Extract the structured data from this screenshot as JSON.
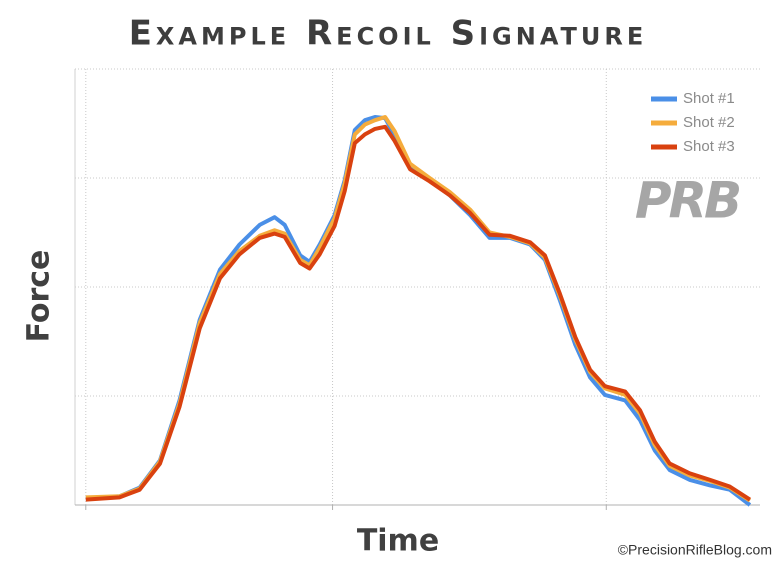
{
  "chart_data": {
    "type": "line",
    "title": "Example Recoil Signature",
    "x_label": "Time",
    "y_label": "Force",
    "logo": "PRB",
    "credit": "©PrecisionRifleBlog.com",
    "x": [
      0,
      5.0,
      8.0,
      11.0,
      13.9,
      16.9,
      19.9,
      22.8,
      25.8,
      28.0,
      29.5,
      31.8,
      33.2,
      34.7,
      36.9,
      38.4,
      39.9,
      41.4,
      42.9,
      44.4,
      45.8,
      48.1,
      51.0,
      54.0,
      57.0,
      59.9,
      62.9,
      65.9,
      68.1,
      70.3,
      72.6,
      74.8,
      77.0,
      80.0,
      82.2,
      84.4,
      86.6,
      89.6,
      92.6,
      95.5,
      98.5
    ],
    "series": [
      {
        "name": "Shot #1",
        "color": "#4a8fe7",
        "values": [
          0.06,
          0.08,
          0.16,
          0.41,
          0.96,
          1.7,
          2.16,
          2.39,
          2.57,
          2.64,
          2.57,
          2.29,
          2.23,
          2.39,
          2.66,
          2.98,
          3.44,
          3.53,
          3.56,
          3.55,
          3.39,
          3.09,
          2.98,
          2.84,
          2.66,
          2.45,
          2.45,
          2.39,
          2.25,
          1.88,
          1.47,
          1.17,
          1.01,
          0.96,
          0.78,
          0.5,
          0.32,
          0.23,
          0.18,
          0.14,
          0.0
        ]
      },
      {
        "name": "Shot #2",
        "color": "#f5ac3c",
        "values": [
          0.07,
          0.08,
          0.15,
          0.4,
          0.93,
          1.67,
          2.12,
          2.33,
          2.47,
          2.52,
          2.49,
          2.25,
          2.2,
          2.36,
          2.63,
          2.95,
          3.4,
          3.49,
          3.53,
          3.56,
          3.43,
          3.13,
          3.0,
          2.87,
          2.71,
          2.5,
          2.46,
          2.4,
          2.27,
          1.92,
          1.52,
          1.22,
          1.07,
          1.01,
          0.84,
          0.55,
          0.36,
          0.27,
          0.22,
          0.16,
          0.04
        ]
      },
      {
        "name": "Shot #3",
        "color": "#d9410f",
        "values": [
          0.05,
          0.07,
          0.14,
          0.38,
          0.9,
          1.62,
          2.08,
          2.3,
          2.45,
          2.49,
          2.46,
          2.22,
          2.17,
          2.3,
          2.56,
          2.88,
          3.32,
          3.4,
          3.45,
          3.47,
          3.34,
          3.08,
          2.97,
          2.84,
          2.68,
          2.48,
          2.47,
          2.41,
          2.29,
          1.94,
          1.54,
          1.24,
          1.09,
          1.04,
          0.87,
          0.58,
          0.38,
          0.29,
          0.23,
          0.17,
          0.05
        ]
      }
    ],
    "xlim": [
      -1.6,
      100
    ],
    "xticks": [
      0,
      36.6,
      77.2
    ],
    "ylim": [
      0,
      4
    ],
    "yticks": [
      0,
      1,
      2,
      3,
      4
    ],
    "grid": true,
    "legend": "top-right"
  }
}
